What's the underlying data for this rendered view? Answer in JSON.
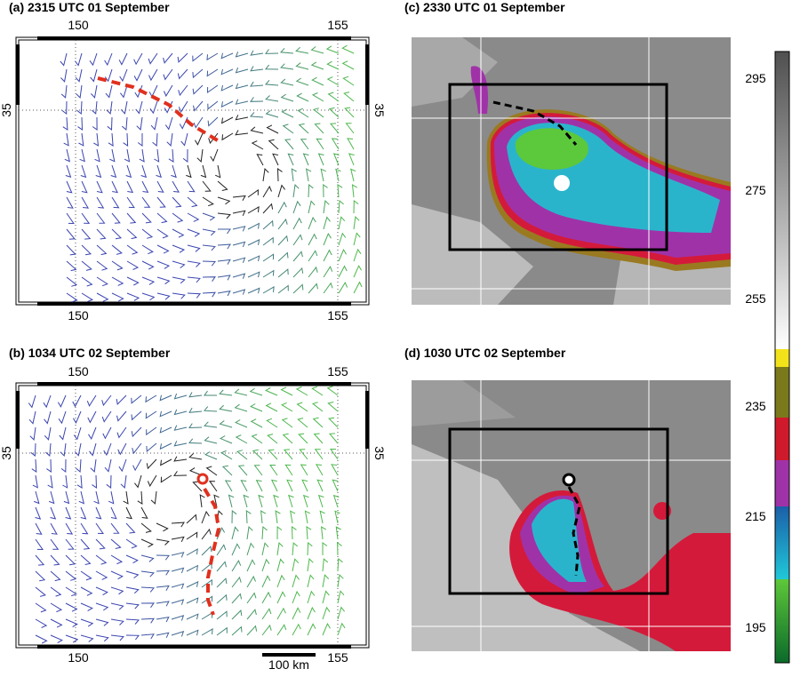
{
  "panels": [
    {
      "title": "(a) 2315 UTC 01 September",
      "top_lon_labels": [
        "150",
        "155"
      ],
      "bottom_lon_labels": [
        "150",
        "155"
      ],
      "lat_labels": [
        "35",
        "35"
      ]
    },
    {
      "title": "(b) 1034 UTC 02 September",
      "top_lon_labels": [
        "150",
        "155"
      ],
      "bottom_lon_labels": [
        "150",
        "155"
      ],
      "lat_labels": [
        "35",
        "35"
      ],
      "scale_bar": "100 km"
    },
    {
      "title": "(c) 2330 UTC 01 September"
    },
    {
      "title": "(d) 1030 UTC 02 September"
    }
  ],
  "colorbar": {
    "labels": [
      "295",
      "275",
      "255",
      "235",
      "215",
      "195"
    ]
  }
}
